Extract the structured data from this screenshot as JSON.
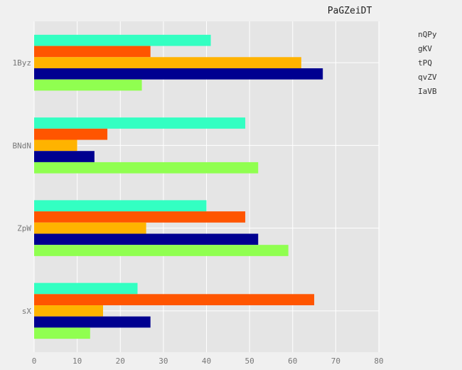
{
  "chart_data": {
    "type": "bar",
    "orientation": "horizontal",
    "title": "PaGZeiDT",
    "xlabel": "",
    "ylabel": "",
    "xlim": [
      0,
      80
    ],
    "xticks": [
      0,
      10,
      20,
      30,
      40,
      50,
      60,
      70,
      80
    ],
    "categories": [
      "1Byz",
      "BNdN",
      "ZpW",
      "sX"
    ],
    "series": [
      {
        "name": "nQPy",
        "values": [
          41,
          49,
          40,
          24
        ]
      },
      {
        "name": "gKV",
        "values": [
          27,
          17,
          49,
          65
        ]
      },
      {
        "name": "tPQ",
        "values": [
          62,
          10,
          26,
          16
        ]
      },
      {
        "name": "qvZV",
        "values": [
          67,
          14,
          52,
          27
        ]
      },
      {
        "name": "IaVB",
        "values": [
          25,
          52,
          59,
          13
        ]
      }
    ],
    "grid": true,
    "legend_position": "top-right"
  },
  "colors": {
    "background": "#f0f0f0",
    "plot_background": "#e5e5e5",
    "grid": "#ffffff",
    "series": [
      "#33ffc2",
      "#ff5500",
      "#ffb300",
      "#000090",
      "#90ff50"
    ]
  }
}
